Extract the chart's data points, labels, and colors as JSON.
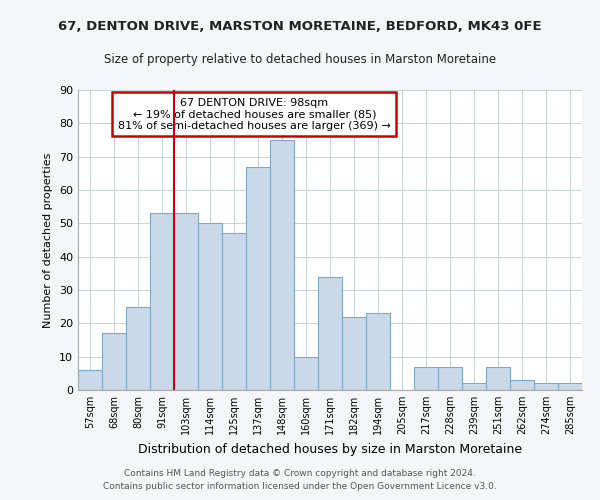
{
  "title1": "67, DENTON DRIVE, MARSTON MORETAINE, BEDFORD, MK43 0FE",
  "title2": "Size of property relative to detached houses in Marston Moretaine",
  "xlabel": "Distribution of detached houses by size in Marston Moretaine",
  "ylabel": "Number of detached properties",
  "bin_labels": [
    "57sqm",
    "68sqm",
    "80sqm",
    "91sqm",
    "103sqm",
    "114sqm",
    "125sqm",
    "137sqm",
    "148sqm",
    "160sqm",
    "171sqm",
    "182sqm",
    "194sqm",
    "205sqm",
    "217sqm",
    "228sqm",
    "239sqm",
    "251sqm",
    "262sqm",
    "274sqm",
    "285sqm"
  ],
  "bar_heights": [
    6,
    17,
    25,
    53,
    53,
    50,
    47,
    67,
    75,
    10,
    34,
    22,
    23,
    0,
    7,
    7,
    2,
    7,
    3,
    2,
    2
  ],
  "bar_color": "#c9d9ea",
  "bar_edge_color": "#7aaac8",
  "vline_color": "#cc0000",
  "annotation_title": "67 DENTON DRIVE: 98sqm",
  "annotation_line1": "← 19% of detached houses are smaller (85)",
  "annotation_line2": "81% of semi-detached houses are larger (369) →",
  "annotation_box_edgecolor": "#cc0000",
  "ylim": [
    0,
    90
  ],
  "yticks": [
    0,
    10,
    20,
    30,
    40,
    50,
    60,
    70,
    80,
    90
  ],
  "footer1": "Contains HM Land Registry data © Crown copyright and database right 2024.",
  "footer2": "Contains public sector information licensed under the Open Government Licence v3.0.",
  "bg_color": "#f4f6f9",
  "plot_bg_color": "#ffffff",
  "grid_color": "#c8d0d8"
}
